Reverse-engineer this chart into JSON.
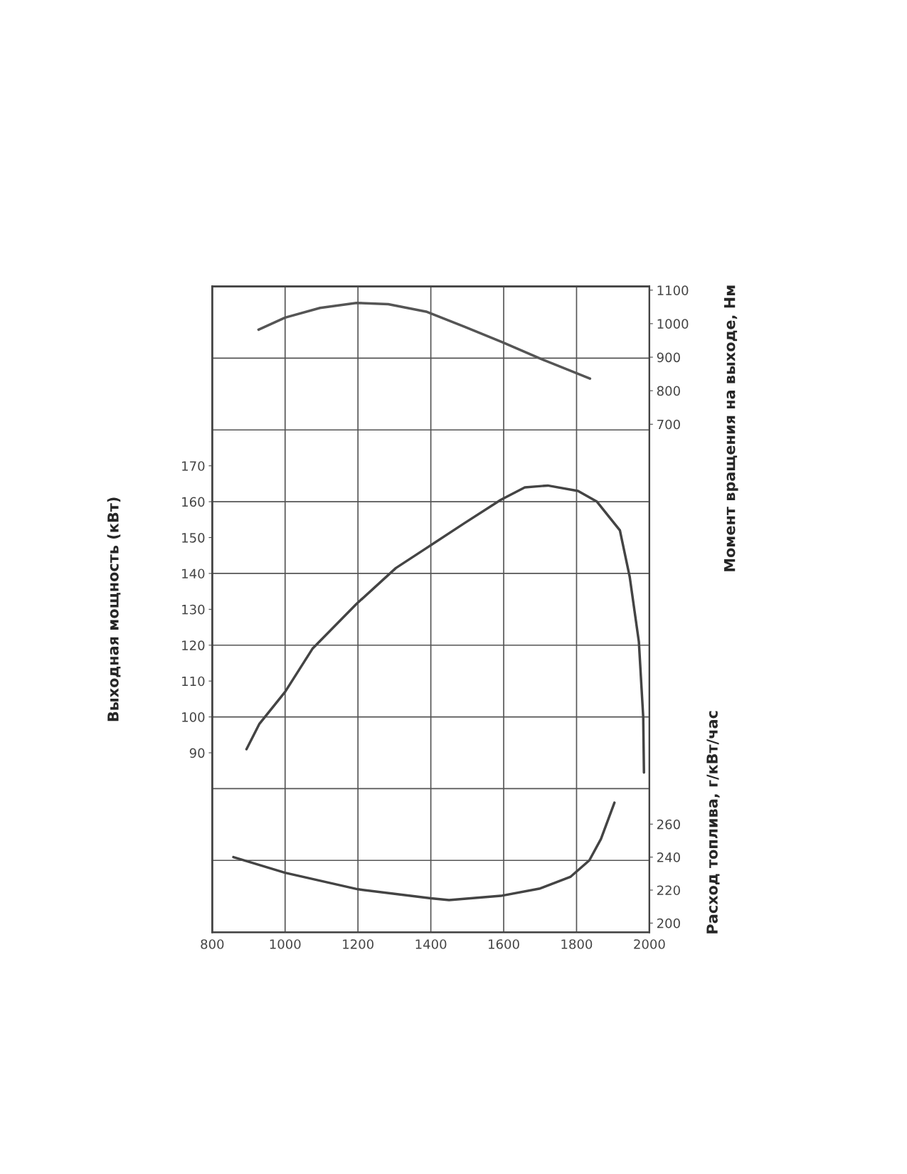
{
  "chart_data": {
    "type": "line",
    "xlabel": null,
    "ylabel": "Выходная мощность (кВт)",
    "y2label": "Момент вращения на выходе, Нм",
    "y3label": "Расход топлива, г/кВт/час",
    "xlim": [
      800,
      2000
    ],
    "xticks": [
      800,
      1000,
      1200,
      1400,
      1600,
      1800,
      2000
    ],
    "ylim": [
      40,
      220
    ],
    "yticks": [
      90,
      100,
      110,
      120,
      130,
      140,
      150,
      160,
      170
    ],
    "y2lim": [
      -815,
      1111
    ],
    "y2ticks": [
      700,
      800,
      900,
      1000,
      1100
    ],
    "y3lim": [
      194.5,
      586
    ],
    "y3ticks": [
      200,
      220,
      240,
      260
    ],
    "grid": "x",
    "marker": "none",
    "line_style": "solid",
    "ref_lines": [
      {
        "axis": "y",
        "value": 60,
        "color": "#555555"
      },
      {
        "axis": "y",
        "value": 80,
        "color": "#555555"
      },
      {
        "axis": "y",
        "value": 100,
        "color": "#555555"
      },
      {
        "axis": "y",
        "value": 120,
        "color": "#555555"
      },
      {
        "axis": "y",
        "value": 140,
        "color": "#555555"
      },
      {
        "axis": "y",
        "value": 160,
        "color": "#555555"
      },
      {
        "axis": "y",
        "value": 180,
        "color": "#555555"
      },
      {
        "axis": "y",
        "value": 200,
        "color": "#555555"
      }
    ],
    "series": [
      {
        "color": "#555555",
        "axis": "y2",
        "x": [
          927,
          1000,
          1096,
          1196,
          1283,
          1387,
          1492,
          1596,
          1700,
          1837
        ],
        "values": [
          982,
          1018,
          1047,
          1062,
          1058,
          1036,
          991,
          945,
          896,
          836
        ]
      },
      {
        "color": "#444444",
        "axis": "y",
        "x": [
          894,
          929,
          1000,
          1075,
          1196,
          1304,
          1387,
          1492,
          1592,
          1658,
          1721,
          1804,
          1856,
          1919,
          1946,
          1971,
          1983,
          1985
        ],
        "values": [
          91,
          98,
          107,
          119,
          131.5,
          141.5,
          147,
          154,
          160.5,
          164,
          164.5,
          163,
          160,
          152,
          139,
          121,
          100,
          84.5
        ]
      },
      {
        "color": "#444444",
        "axis": "y3",
        "x": [
          858,
          1000,
          1200,
          1400,
          1450,
          1592,
          1700,
          1783,
          1835,
          1867,
          1904
        ],
        "values": [
          240,
          230.5,
          220.5,
          215,
          214,
          216.5,
          221,
          228,
          238,
          251,
          273
        ]
      }
    ]
  }
}
